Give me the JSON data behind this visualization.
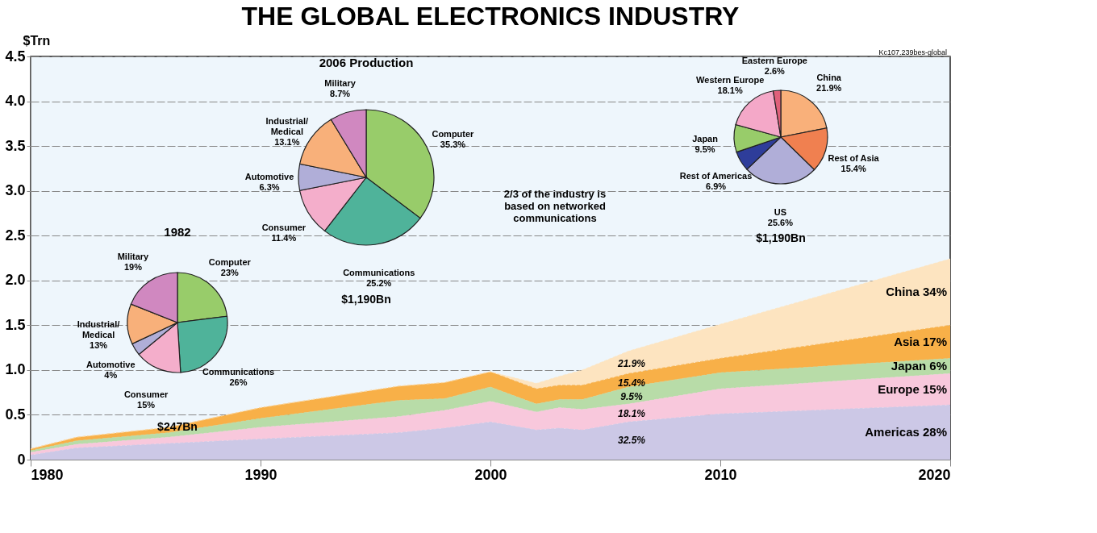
{
  "chart_data": [
    {
      "type": "area",
      "title": "THE GLOBAL  ELECTRONICS INDUSTRY",
      "ylabel": "$Trn",
      "stacked": true,
      "grid": "y",
      "x": [
        1980,
        1982,
        1986,
        1990,
        1996,
        1998,
        2000,
        2002,
        2003,
        2004,
        2006,
        2010,
        2020
      ],
      "xlim": [
        1980,
        2020
      ],
      "xticks": [
        1980,
        1990,
        2000,
        2010,
        2020
      ],
      "ylim": [
        0,
        4.5
      ],
      "yticks": [
        {
          "value": 0,
          "label": "0"
        },
        0.5,
        {
          "value": 1,
          "label": "1.0"
        },
        1.5,
        {
          "value": 2,
          "label": "2.0"
        },
        2.5,
        {
          "value": 3,
          "label": "3.0"
        },
        3.5,
        {
          "value": 4,
          "label": "4.0"
        },
        4.5
      ],
      "series": [
        {
          "name": "Americas 28%",
          "color": "#ccc8e6",
          "values": [
            0.05,
            0.13,
            0.18,
            0.23,
            0.3,
            0.35,
            0.42,
            0.33,
            0.35,
            0.33,
            0.42,
            0.51,
            0.61
          ]
        },
        {
          "name": "Europe 15%",
          "color": "#f8c8dc",
          "values": [
            0.03,
            0.04,
            0.07,
            0.13,
            0.18,
            0.2,
            0.23,
            0.2,
            0.23,
            0.23,
            0.2,
            0.28,
            0.35
          ]
        },
        {
          "name": "Japan 6%",
          "color": "#b8dca8",
          "values": [
            0.02,
            0.04,
            0.05,
            0.1,
            0.18,
            0.13,
            0.16,
            0.09,
            0.09,
            0.11,
            0.19,
            0.18,
            0.17
          ]
        },
        {
          "name": "Asia 17%",
          "color": "#f8b048",
          "values": [
            0.02,
            0.04,
            0.06,
            0.12,
            0.16,
            0.18,
            0.17,
            0.17,
            0.16,
            0.16,
            0.15,
            0.16,
            0.37
          ]
        },
        {
          "name": "China 34%",
          "color": "#fde4c0",
          "values": [
            0,
            0,
            0,
            0,
            0,
            0,
            0,
            0.06,
            0.1,
            0.17,
            0.25,
            0.38,
            0.74
          ]
        }
      ],
      "annotations": [
        "Kc107.239bes-global",
        "32.5%",
        "18.1%",
        "9.5%",
        "15.4%",
        "21.9%"
      ]
    },
    {
      "type": "pie",
      "title": "1982",
      "categories": [
        "Computer",
        "Communications",
        "Consumer",
        "Automotive",
        "Industrial/Medical",
        "Military"
      ],
      "values": [
        23,
        26,
        15,
        4,
        13,
        19
      ],
      "value_labels": [
        "23%",
        "26%",
        "15%",
        "4%",
        "13%",
        "19%"
      ],
      "colors": [
        "#98cc6a",
        "#4fb39a",
        "#f4aecb",
        "#b0aed8",
        "#f8b07a",
        "#d088c0"
      ],
      "annotations": [
        "$247Bn"
      ]
    },
    {
      "type": "pie",
      "title": "2006 Production",
      "categories": [
        "Computer",
        "Communications",
        "Consumer",
        "Automotive",
        "Industrial/Medical",
        "Military"
      ],
      "values": [
        35.3,
        25.2,
        11.4,
        6.3,
        13.1,
        8.7
      ],
      "value_labels": [
        "35.3%",
        "25.2%",
        "11.4%",
        "6.3%",
        "13.1%",
        "8.7%"
      ],
      "colors": [
        "#98cc6a",
        "#4fb39a",
        "#f4aecb",
        "#b0aed8",
        "#f8b07a",
        "#d088c0"
      ],
      "annotations": [
        "$1,190Bn",
        "2/3 of the industry is based on networked communications"
      ]
    },
    {
      "type": "pie",
      "categories": [
        "China",
        "Rest of Asia",
        "US",
        "Rest of Americas",
        "Japan",
        "Western Europe",
        "Eastern Europe"
      ],
      "values": [
        21.9,
        15.4,
        25.6,
        6.9,
        9.5,
        18.1,
        2.6
      ],
      "value_labels": [
        "21.9%",
        "15.4%",
        "25.6%",
        "6.9%",
        "9.5%",
        "18.1%",
        "2.6%"
      ],
      "colors": [
        "#f9b07a",
        "#f08050",
        "#b0aed8",
        "#2e3d9a",
        "#98cc6a",
        "#f4a8c8",
        "#e0607a"
      ],
      "annotations": [
        "$1,190Bn"
      ]
    }
  ]
}
